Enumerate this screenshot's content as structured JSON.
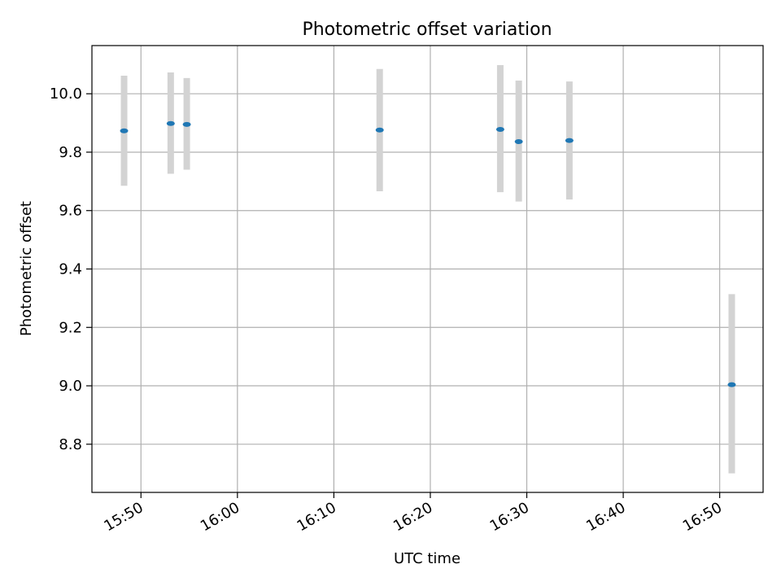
{
  "chart_data": {
    "type": "scatter",
    "title": "Photometric offset variation",
    "xlabel": "UTC time",
    "ylabel": "Photometric offset",
    "x_is_time": true,
    "xlim": [
      "15:44:55",
      "16:54:30"
    ],
    "ylim": [
      8.635,
      10.165
    ],
    "xticks": [
      "15:50",
      "16:00",
      "16:10",
      "16:20",
      "16:30",
      "16:40",
      "16:50"
    ],
    "yticks": [
      "8.8",
      "9.0",
      "9.2",
      "9.4",
      "9.6",
      "9.8",
      "10.0"
    ],
    "grid": true,
    "marker_color": "#1f77b4",
    "errorbar_color": "#d3d3d3",
    "points": [
      {
        "x": "15:48:15",
        "y": 9.873,
        "yerr_low": 9.685,
        "yerr_high": 10.062
      },
      {
        "x": "15:53:05",
        "y": 9.898,
        "yerr_low": 9.726,
        "yerr_high": 10.073
      },
      {
        "x": "15:54:45",
        "y": 9.895,
        "yerr_low": 9.74,
        "yerr_high": 10.054
      },
      {
        "x": "16:14:45",
        "y": 9.876,
        "yerr_low": 9.666,
        "yerr_high": 10.085
      },
      {
        "x": "16:27:15",
        "y": 9.878,
        "yerr_low": 9.663,
        "yerr_high": 10.098
      },
      {
        "x": "16:29:10",
        "y": 9.836,
        "yerr_low": 9.631,
        "yerr_high": 10.045
      },
      {
        "x": "16:34:25",
        "y": 9.84,
        "yerr_low": 9.638,
        "yerr_high": 10.042
      },
      {
        "x": "16:51:15",
        "y": 9.004,
        "yerr_low": 8.7,
        "yerr_high": 9.314
      }
    ]
  }
}
